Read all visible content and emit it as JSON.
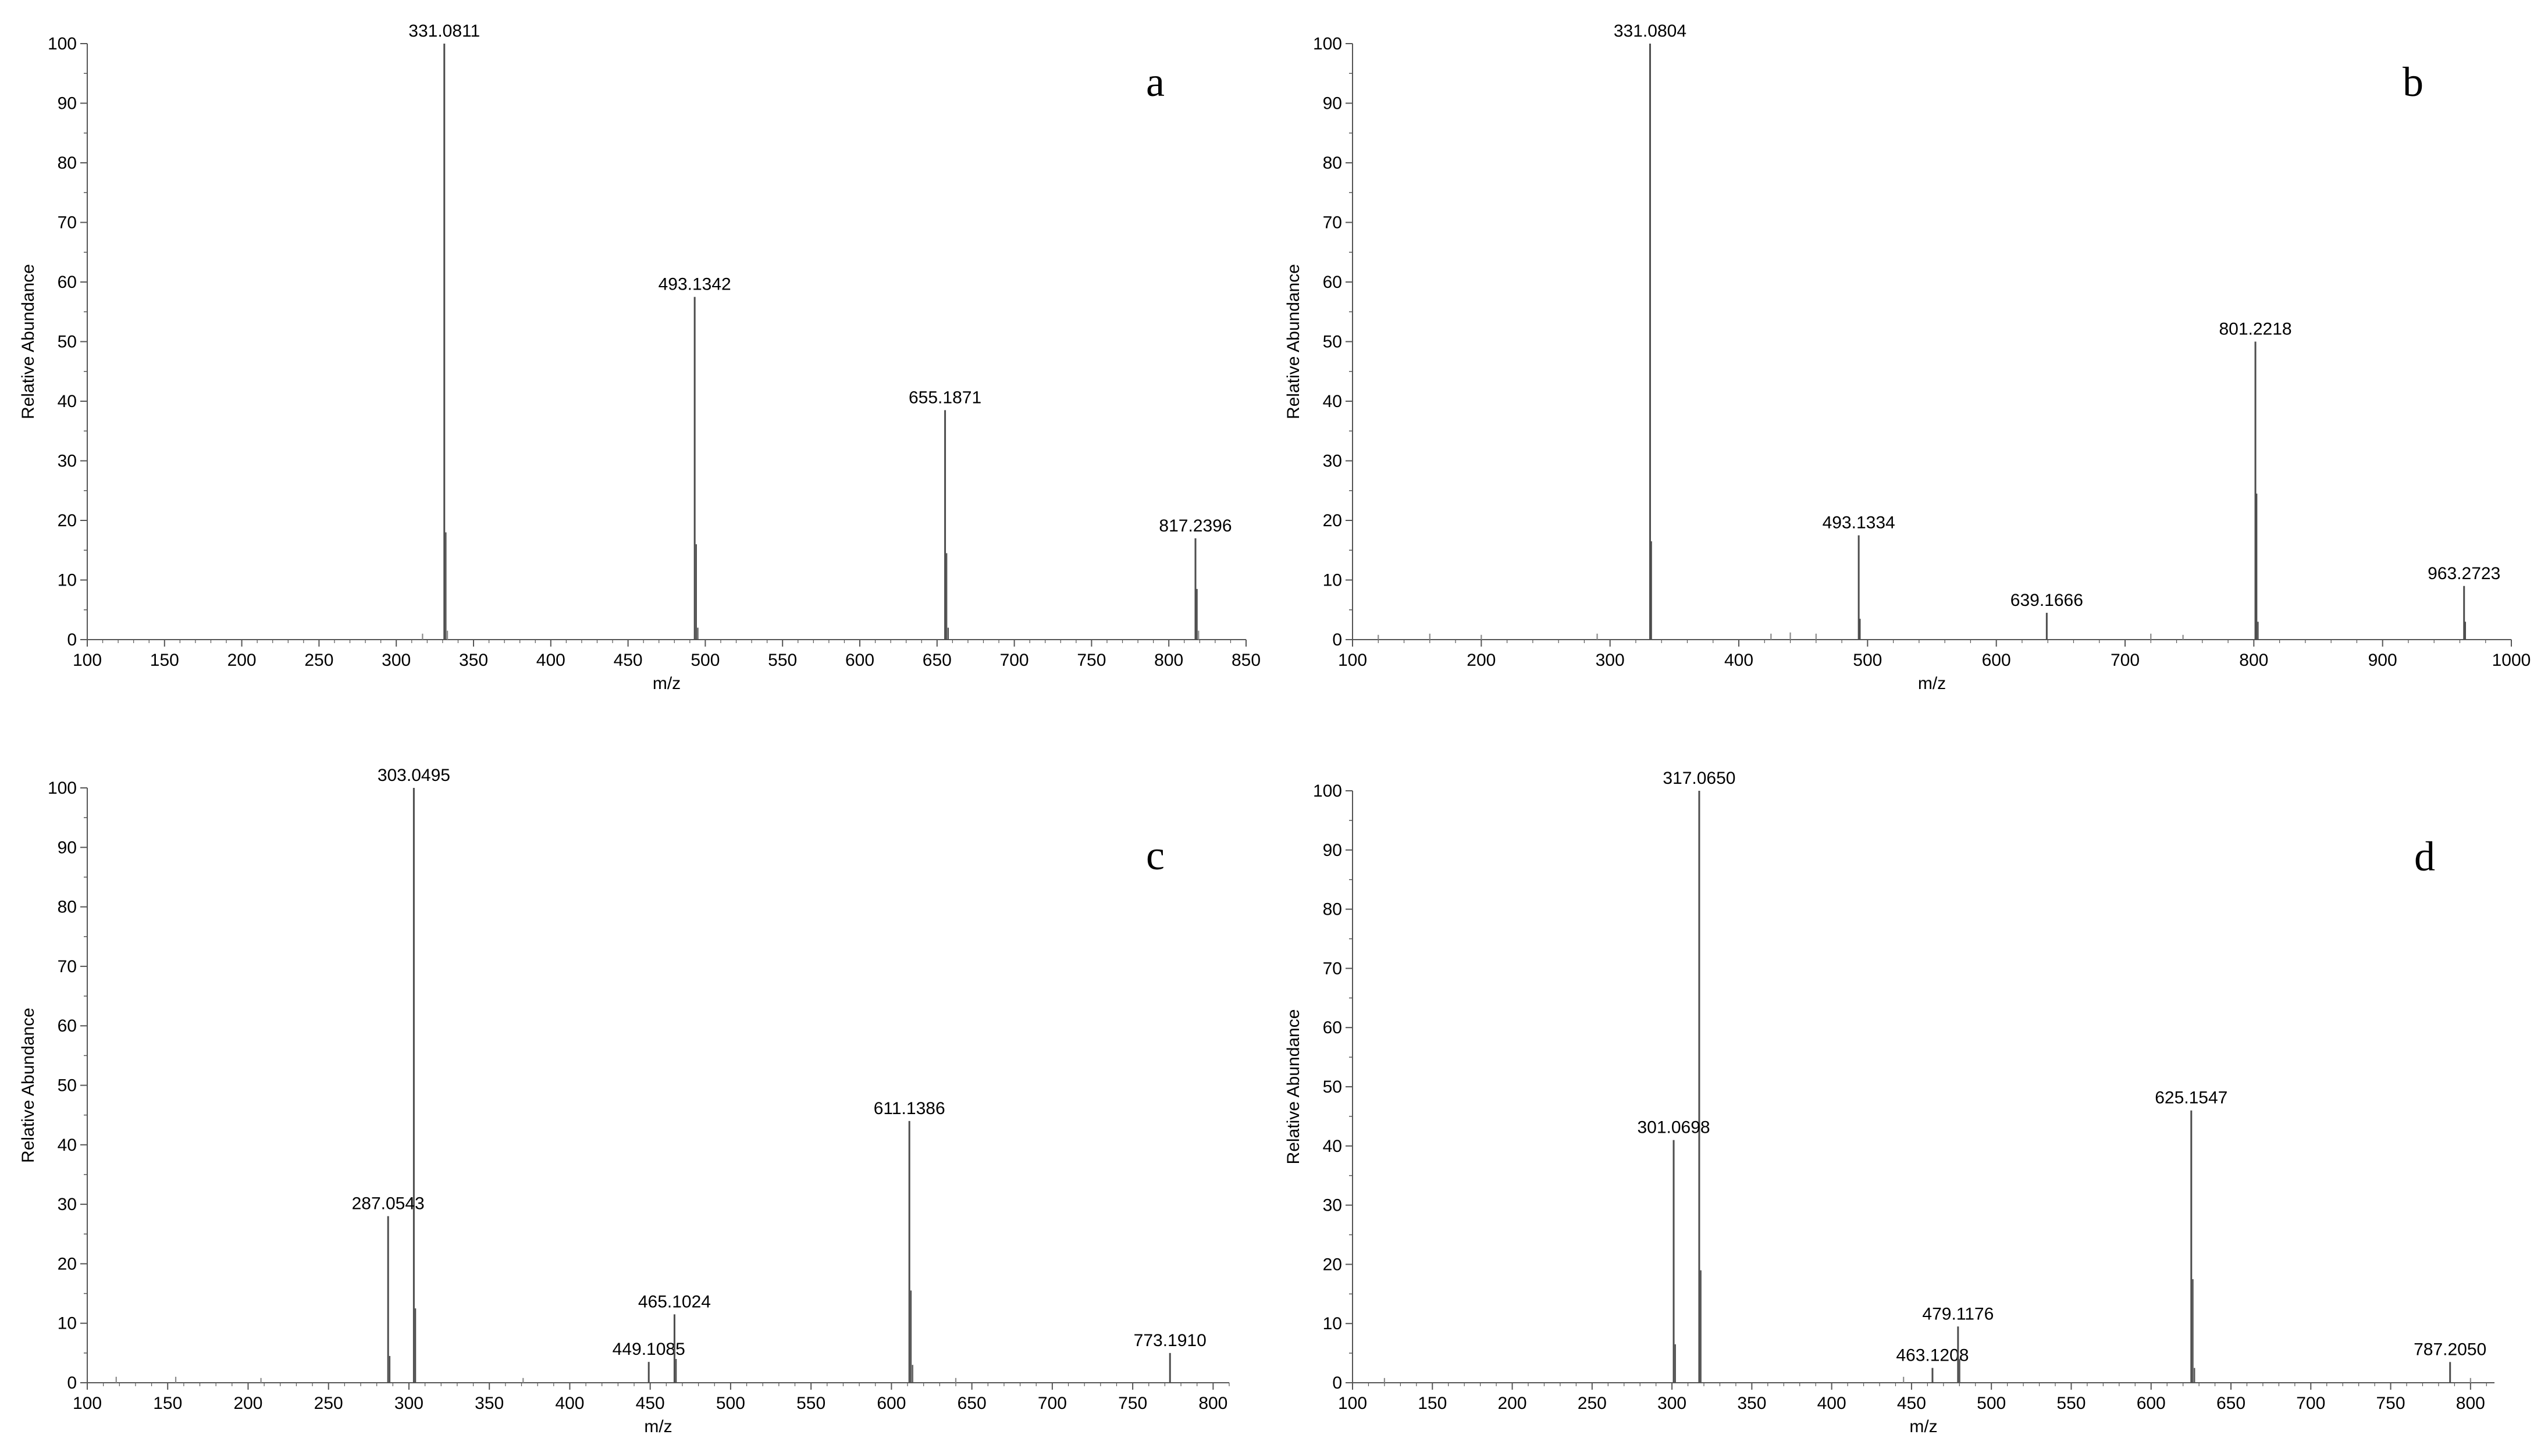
{
  "colors": {
    "peak": "#4d4d4d",
    "noise": "#8a8a8a",
    "axis": "#555555",
    "text": "#000000",
    "annotation_leader": "#3cb4a8"
  },
  "chart_data": [
    {
      "type": "bar",
      "panel_label": "a",
      "xlabel": "m/z",
      "ylabel": "Relative Abundance",
      "xlim": [
        100,
        850
      ],
      "ylim": [
        0,
        100
      ],
      "xticks": [
        100,
        150,
        200,
        250,
        300,
        350,
        400,
        450,
        500,
        550,
        600,
        650,
        700,
        750,
        800,
        850
      ],
      "yticks": [
        0,
        10,
        20,
        30,
        40,
        50,
        60,
        70,
        80,
        90,
        100
      ],
      "peaks": [
        {
          "mz": 331.0811,
          "abundance": 100,
          "label": "331.0811"
        },
        {
          "mz": 332.08,
          "abundance": 18
        },
        {
          "mz": 333.09,
          "abundance": 1.5
        },
        {
          "mz": 493.1342,
          "abundance": 57.5,
          "label": "493.1342"
        },
        {
          "mz": 494.14,
          "abundance": 16
        },
        {
          "mz": 495.14,
          "abundance": 2
        },
        {
          "mz": 655.1871,
          "abundance": 38.5,
          "label": "655.1871"
        },
        {
          "mz": 656.19,
          "abundance": 14.5
        },
        {
          "mz": 657.19,
          "abundance": 2
        },
        {
          "mz": 817.2396,
          "abundance": 17,
          "label": "817.2396"
        },
        {
          "mz": 818.24,
          "abundance": 8.5
        },
        {
          "mz": 819.24,
          "abundance": 1.5
        },
        {
          "mz": 317.0,
          "abundance": 1
        }
      ]
    },
    {
      "type": "bar",
      "panel_label": "b",
      "xlabel": "m/z",
      "ylabel": "Relative Abundance",
      "xlim": [
        100,
        1000
      ],
      "ylim": [
        0,
        100
      ],
      "xticks": [
        100,
        200,
        300,
        400,
        500,
        600,
        700,
        800,
        900,
        1000
      ],
      "yticks": [
        0,
        10,
        20,
        30,
        40,
        50,
        60,
        70,
        80,
        90,
        100
      ],
      "peaks": [
        {
          "mz": 331.0804,
          "abundance": 100,
          "label": "331.0804"
        },
        {
          "mz": 332.08,
          "abundance": 16.5
        },
        {
          "mz": 493.1334,
          "abundance": 17.5,
          "label": "493.1334"
        },
        {
          "mz": 494.14,
          "abundance": 3.5
        },
        {
          "mz": 639.1666,
          "abundance": 4.5,
          "label": "639.1666"
        },
        {
          "mz": 801.2218,
          "abundance": 50,
          "label": "801.2218"
        },
        {
          "mz": 802.22,
          "abundance": 24.5
        },
        {
          "mz": 803.23,
          "abundance": 3
        },
        {
          "mz": 963.2723,
          "abundance": 9,
          "label": "963.2723"
        },
        {
          "mz": 964.27,
          "abundance": 3
        },
        {
          "mz": 120,
          "abundance": 0.8
        },
        {
          "mz": 160,
          "abundance": 1
        },
        {
          "mz": 200,
          "abundance": 0.8
        },
        {
          "mz": 290,
          "abundance": 1
        },
        {
          "mz": 425,
          "abundance": 1
        },
        {
          "mz": 440,
          "abundance": 1.2
        },
        {
          "mz": 460,
          "abundance": 1
        },
        {
          "mz": 720,
          "abundance": 1
        },
        {
          "mz": 745,
          "abundance": 0.8
        }
      ]
    },
    {
      "type": "bar",
      "panel_label": "c",
      "xlabel": "m/z",
      "ylabel": "Relative Abundance",
      "xlim": [
        100,
        810
      ],
      "ylim": [
        0,
        100
      ],
      "xticks": [
        100,
        150,
        200,
        250,
        300,
        350,
        400,
        450,
        500,
        550,
        600,
        650,
        700,
        750,
        800
      ],
      "yticks": [
        0,
        10,
        20,
        30,
        40,
        50,
        60,
        70,
        80,
        90,
        100
      ],
      "peaks": [
        {
          "mz": 303.0495,
          "abundance": 100,
          "label": "303.0495"
        },
        {
          "mz": 304.05,
          "abundance": 12.5
        },
        {
          "mz": 287.0543,
          "abundance": 28,
          "label": "287.0543"
        },
        {
          "mz": 288.06,
          "abundance": 4.5
        },
        {
          "mz": 449.1085,
          "abundance": 3.5,
          "label": "449.1085"
        },
        {
          "mz": 465.1024,
          "abundance": 11.5,
          "label": "465.1024"
        },
        {
          "mz": 466.11,
          "abundance": 4
        },
        {
          "mz": 611.1386,
          "abundance": 44,
          "label": "611.1386"
        },
        {
          "mz": 612.14,
          "abundance": 15.5
        },
        {
          "mz": 613.14,
          "abundance": 3
        },
        {
          "mz": 773.191,
          "abundance": 5,
          "label": "773.1910"
        },
        {
          "mz": 118,
          "abundance": 1
        },
        {
          "mz": 155,
          "abundance": 1
        },
        {
          "mz": 208,
          "abundance": 0.8
        },
        {
          "mz": 371,
          "abundance": 0.8
        },
        {
          "mz": 640,
          "abundance": 0.8
        }
      ]
    },
    {
      "type": "bar",
      "panel_label": "d",
      "xlabel": "m/z",
      "ylabel": "Relative Abundance",
      "xlim": [
        100,
        815
      ],
      "ylim": [
        0,
        100
      ],
      "xticks": [
        100,
        150,
        200,
        250,
        300,
        350,
        400,
        450,
        500,
        550,
        600,
        650,
        700,
        750,
        800
      ],
      "yticks": [
        0,
        10,
        20,
        30,
        40,
        50,
        60,
        70,
        80,
        90,
        100
      ],
      "peaks": [
        {
          "mz": 317.065,
          "abundance": 100,
          "label": "317.0650"
        },
        {
          "mz": 318.07,
          "abundance": 19
        },
        {
          "mz": 301.0698,
          "abundance": 41,
          "label": "301.0698"
        },
        {
          "mz": 302.07,
          "abundance": 6.5
        },
        {
          "mz": 463.1208,
          "abundance": 2.5,
          "label": "463.1208"
        },
        {
          "mz": 479.1176,
          "abundance": 9.5,
          "label": "479.1176"
        },
        {
          "mz": 480.12,
          "abundance": 4
        },
        {
          "mz": 625.1547,
          "abundance": 46,
          "label": "625.1547"
        },
        {
          "mz": 626.16,
          "abundance": 17.5
        },
        {
          "mz": 627.16,
          "abundance": 2.5
        },
        {
          "mz": 787.205,
          "abundance": 3.5,
          "label": "787.2050"
        },
        {
          "mz": 120,
          "abundance": 0.8
        },
        {
          "mz": 445,
          "abundance": 1
        },
        {
          "mz": 800,
          "abundance": 0.8
        }
      ]
    }
  ]
}
